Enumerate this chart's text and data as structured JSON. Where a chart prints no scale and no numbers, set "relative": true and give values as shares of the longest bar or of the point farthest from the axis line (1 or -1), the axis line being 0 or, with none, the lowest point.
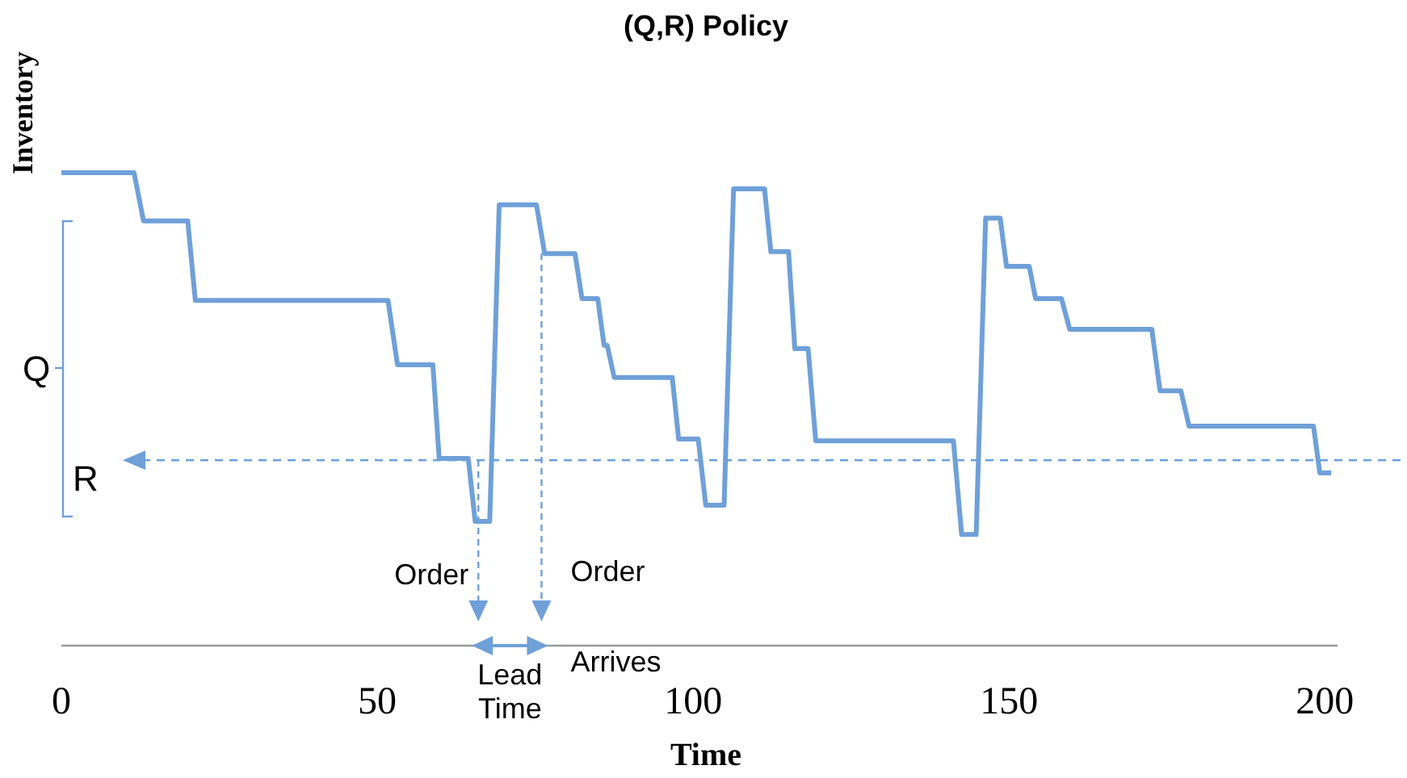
{
  "chart_data": {
    "type": "line",
    "title": "(Q,R) Policy",
    "xlabel": "Time",
    "ylabel": "Inventory",
    "relative": true,
    "x": [
      0,
      11.5,
      13,
      20,
      21.2,
      51.7,
      53.2,
      58.8,
      59.8,
      64.4,
      65.5,
      67.8,
      69.3,
      75.2,
      76.5,
      81.3,
      82.4,
      84.9,
      85.9,
      86.4,
      87.5,
      96.7,
      97.7,
      100.8,
      102,
      104.9,
      106.4,
      111.3,
      112.3,
      115.1,
      116.1,
      118.2,
      119.4,
      141.2,
      142.5,
      144.8,
      146.3,
      148.6,
      149.6,
      153.2,
      154.2,
      158.3,
      159.6,
      172.6,
      173.9,
      177.2,
      178.5,
      198.2,
      199.2,
      201
    ],
    "values": [
      1,
      1,
      0.898,
      0.898,
      0.73,
      0.73,
      0.594,
      0.594,
      0.396,
      0.396,
      0.263,
      0.263,
      0.932,
      0.932,
      0.829,
      0.829,
      0.734,
      0.734,
      0.635,
      0.635,
      0.567,
      0.567,
      0.437,
      0.437,
      0.297,
      0.297,
      0.966,
      0.966,
      0.833,
      0.833,
      0.628,
      0.628,
      0.433,
      0.433,
      0.235,
      0.235,
      0.904,
      0.904,
      0.802,
      0.802,
      0.734,
      0.734,
      0.669,
      0.669,
      0.539,
      0.539,
      0.464,
      0.464,
      0.365,
      0.365
    ],
    "color": "#6fa0d8",
    "line_style": "solid",
    "marker": "none",
    "grid": false,
    "xlim": [
      0,
      202
    ],
    "xticks": [
      0,
      50,
      100,
      150,
      200
    ],
    "ref_lines": [
      {
        "axis": "y",
        "value": 0.392,
        "label": "R",
        "color": "#6fa0d8",
        "line_style": "dashed"
      }
    ],
    "annotations": [
      "Q",
      "Order",
      "Order",
      "Lead Time",
      "Arrives"
    ]
  }
}
